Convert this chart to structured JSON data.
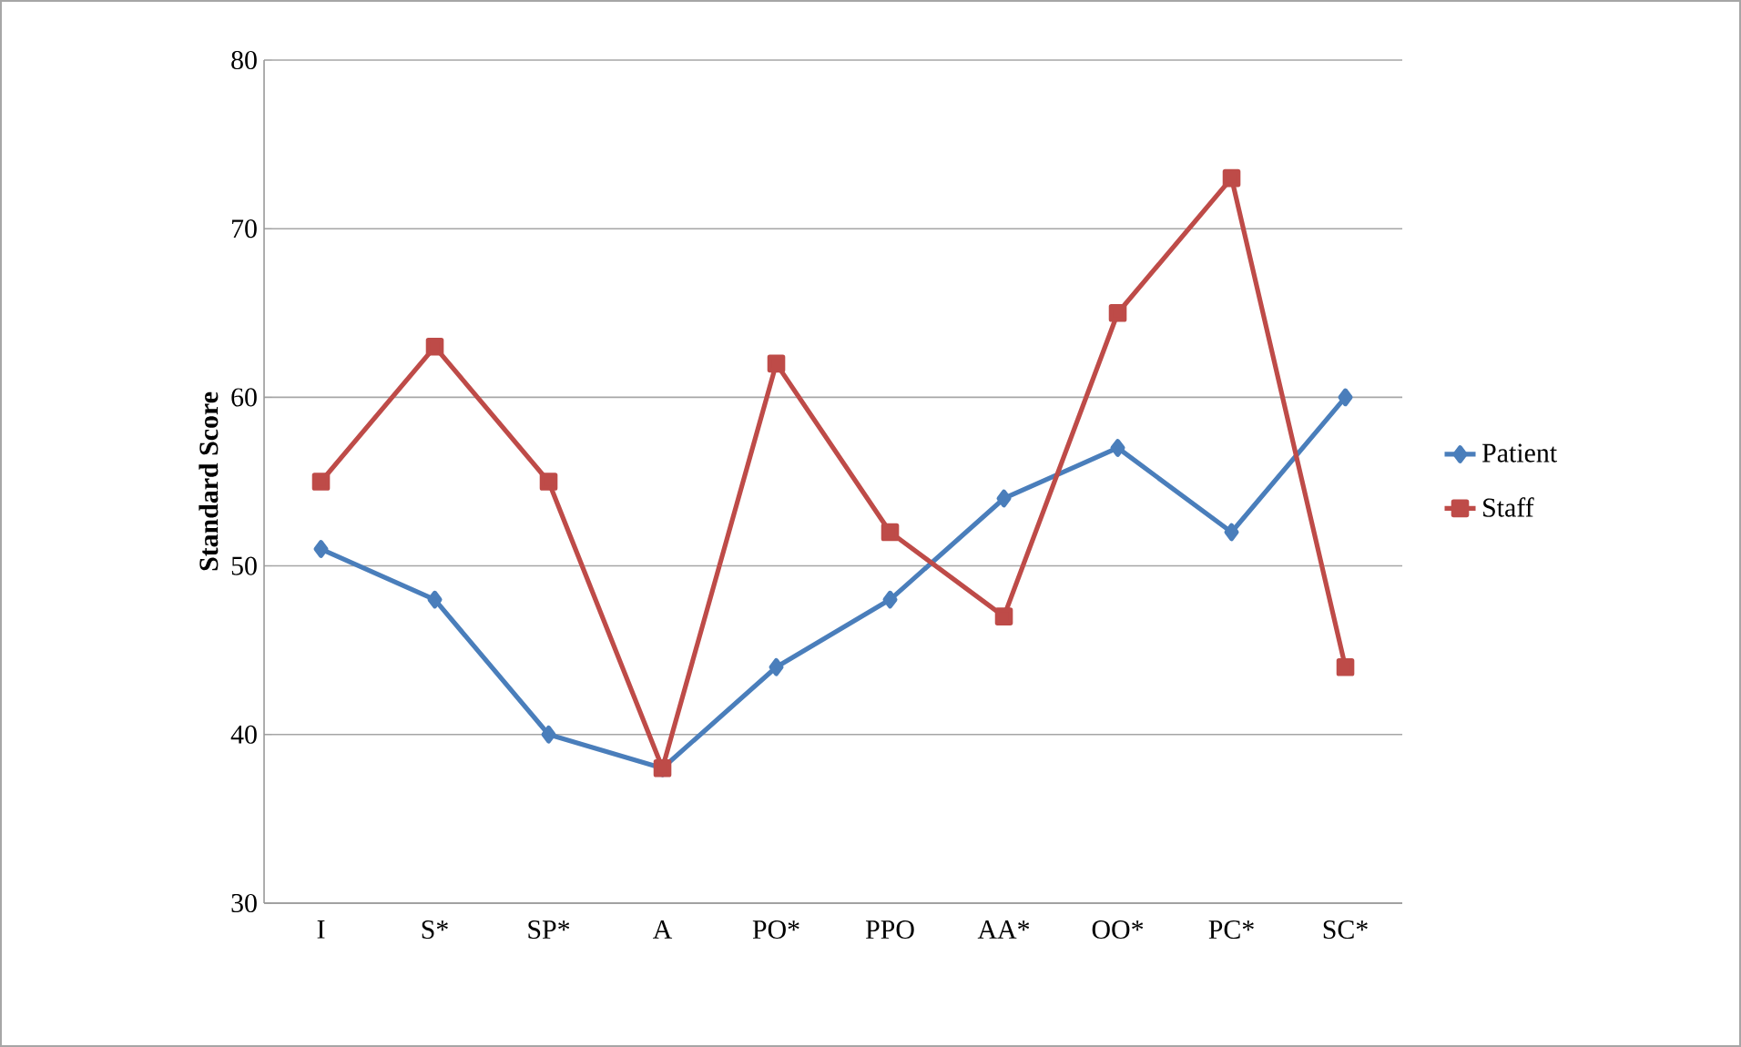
{
  "chart_data": {
    "type": "line",
    "ylabel": "Standard Score",
    "categories": [
      "I",
      "S*",
      "SP*",
      "A",
      "PO*",
      "PPO",
      "AA*",
      "OO*",
      "PC*",
      "SC*"
    ],
    "series": [
      {
        "name": "Patient",
        "color": "#4a7ebb",
        "marker": "diamond",
        "values": [
          51,
          48,
          40,
          38,
          44,
          48,
          54,
          57,
          52,
          60
        ]
      },
      {
        "name": "Staff",
        "color": "#be4b48",
        "marker": "square",
        "values": [
          55,
          63,
          55,
          38,
          62,
          52,
          47,
          65,
          73,
          44
        ]
      }
    ],
    "ylim": [
      30,
      80
    ],
    "yticks": [
      30,
      40,
      50,
      60,
      70,
      80
    ],
    "grid": "y",
    "legend": "right",
    "line_style": "solid"
  }
}
